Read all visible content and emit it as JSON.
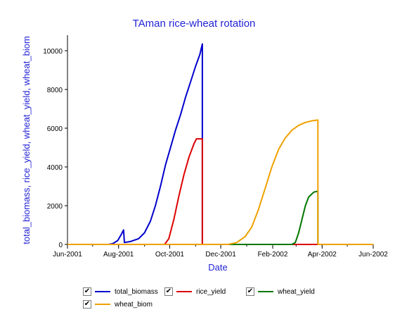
{
  "chart_data": {
    "type": "line",
    "title": "TAman rice-wheat rotation",
    "xlabel": "Date",
    "ylabel": "total_biomass, rice_yield, wheat_yield, wheat_biom",
    "xlim": [
      "2001-06-01",
      "2002-06-01"
    ],
    "ylim": [
      0,
      10800
    ],
    "x_ticks": [
      {
        "date": "2001-06-01",
        "label": "Jun-2001"
      },
      {
        "date": "2001-08-01",
        "label": "Aug-2001"
      },
      {
        "date": "2001-10-01",
        "label": "Oct-2001"
      },
      {
        "date": "2001-12-01",
        "label": "Dec-2001"
      },
      {
        "date": "2002-02-01",
        "label": "Feb-2002"
      },
      {
        "date": "2002-04-01",
        "label": "Apr-2002"
      },
      {
        "date": "2002-06-01",
        "label": "Jun-2002"
      }
    ],
    "y_ticks": [
      0,
      2000,
      4000,
      6000,
      8000,
      10000
    ],
    "grid": false,
    "series": [
      {
        "name": "total_biomass",
        "color": "#0000cc",
        "points": [
          [
            "2001-06-01",
            0
          ],
          [
            "2001-07-20",
            0
          ],
          [
            "2001-07-25",
            40
          ],
          [
            "2001-07-31",
            200
          ],
          [
            "2001-08-04",
            500
          ],
          [
            "2001-08-07",
            750
          ],
          [
            "2001-08-08",
            100
          ],
          [
            "2001-08-15",
            150
          ],
          [
            "2001-08-25",
            300
          ],
          [
            "2001-09-01",
            600
          ],
          [
            "2001-09-08",
            1200
          ],
          [
            "2001-09-14",
            2000
          ],
          [
            "2001-09-20",
            3000
          ],
          [
            "2001-09-26",
            4100
          ],
          [
            "2001-10-02",
            5000
          ],
          [
            "2001-10-08",
            5900
          ],
          [
            "2001-10-14",
            6700
          ],
          [
            "2001-10-20",
            7600
          ],
          [
            "2001-10-26",
            8400
          ],
          [
            "2001-11-01",
            9200
          ],
          [
            "2001-11-06",
            9800
          ],
          [
            "2001-11-09",
            10350
          ],
          [
            "2001-11-09",
            0
          ],
          [
            "2002-06-01",
            0
          ]
        ]
      },
      {
        "name": "rice_yield",
        "color": "#dd0000",
        "points": [
          [
            "2001-06-01",
            0
          ],
          [
            "2001-09-25",
            0
          ],
          [
            "2001-09-30",
            300
          ],
          [
            "2001-10-06",
            1300
          ],
          [
            "2001-10-12",
            2500
          ],
          [
            "2001-10-18",
            3600
          ],
          [
            "2001-10-24",
            4500
          ],
          [
            "2001-10-30",
            5200
          ],
          [
            "2001-11-02",
            5450
          ],
          [
            "2001-11-09",
            5450
          ],
          [
            "2001-11-09",
            0
          ],
          [
            "2002-06-01",
            0
          ]
        ]
      },
      {
        "name": "wheat_yield",
        "color": "#007700",
        "points": [
          [
            "2001-06-01",
            0
          ],
          [
            "2002-02-24",
            0
          ],
          [
            "2002-02-28",
            100
          ],
          [
            "2002-03-04",
            600
          ],
          [
            "2002-03-08",
            1300
          ],
          [
            "2002-03-12",
            2000
          ],
          [
            "2002-03-16",
            2450
          ],
          [
            "2002-03-22",
            2700
          ],
          [
            "2002-03-27",
            2750
          ],
          [
            "2002-03-27",
            0
          ],
          [
            "2002-06-01",
            0
          ]
        ]
      },
      {
        "name": "wheat_biom",
        "color": "#f0a000",
        "points": [
          [
            "2001-06-01",
            0
          ],
          [
            "2001-12-10",
            0
          ],
          [
            "2001-12-20",
            100
          ],
          [
            "2001-12-30",
            400
          ],
          [
            "2002-01-07",
            900
          ],
          [
            "2002-01-15",
            1800
          ],
          [
            "2002-01-23",
            2900
          ],
          [
            "2002-01-31",
            4000
          ],
          [
            "2002-02-08",
            4900
          ],
          [
            "2002-02-16",
            5500
          ],
          [
            "2002-02-24",
            5900
          ],
          [
            "2002-03-04",
            6150
          ],
          [
            "2002-03-12",
            6300
          ],
          [
            "2002-03-20",
            6380
          ],
          [
            "2002-03-27",
            6420
          ],
          [
            "2002-03-27",
            0
          ],
          [
            "2002-06-01",
            0
          ]
        ]
      }
    ],
    "legend": {
      "position": "bottom",
      "items": [
        {
          "name": "total_biomass",
          "color": "#0000cc",
          "checked": true
        },
        {
          "name": "rice_yield",
          "color": "#dd0000",
          "checked": true
        },
        {
          "name": "wheat_yield",
          "color": "#007700",
          "checked": true
        },
        {
          "name": "wheat_biom",
          "color": "#f0a000",
          "checked": true
        }
      ]
    }
  }
}
